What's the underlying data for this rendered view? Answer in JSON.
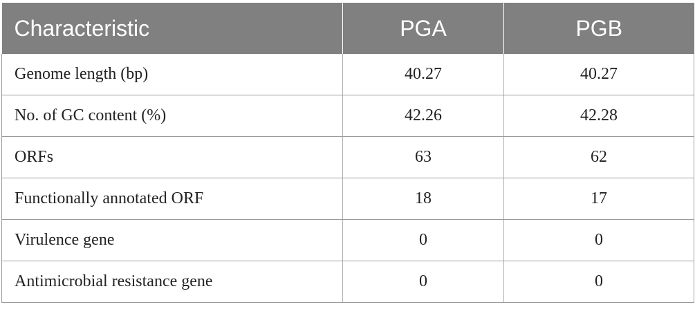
{
  "table": {
    "headers": [
      "Characteristic",
      "PGA",
      "PGB"
    ],
    "rows": [
      [
        "Genome length (bp)",
        "40.27",
        "40.27"
      ],
      [
        "No. of GC content (%)",
        "42.26",
        "42.28"
      ],
      [
        "ORFs",
        "63",
        "62"
      ],
      [
        "Functionally annotated ORF",
        "18",
        "17"
      ],
      [
        "Virulence gene",
        "0",
        "0"
      ],
      [
        "Antimicrobial resistance gene",
        "0",
        "0"
      ]
    ]
  },
  "colors": {
    "header_bg": "#808080",
    "header_text": "#ffffff",
    "grid_line": "#9a9a9a"
  }
}
